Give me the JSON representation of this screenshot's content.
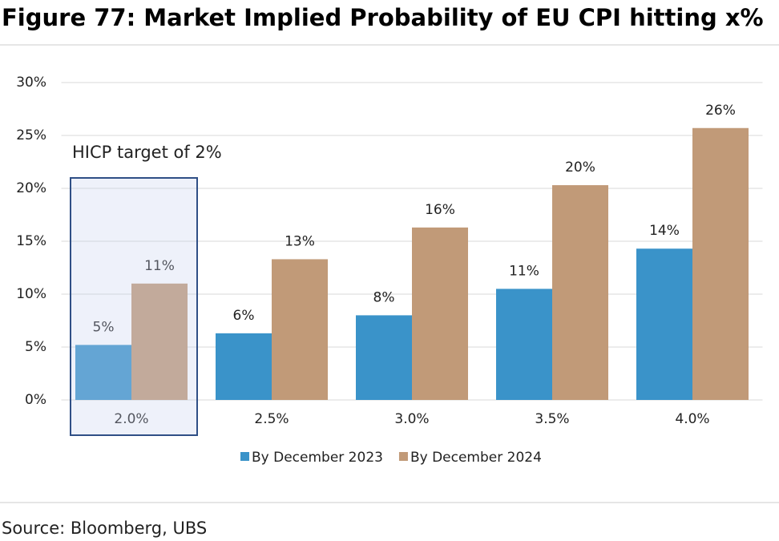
{
  "chart_data": {
    "type": "bar",
    "title": "Figure 77: Market Implied Probability of EU CPI hitting x%",
    "categories": [
      "2.0%",
      "2.5%",
      "3.0%",
      "3.5%",
      "4.0%"
    ],
    "series": [
      {
        "name": "By December 2023",
        "color": "#3a93c9",
        "values": [
          5.2,
          6.3,
          8.0,
          10.5,
          14.3
        ],
        "value_labels": [
          "5%",
          "6%",
          "8%",
          "11%",
          "14%"
        ]
      },
      {
        "name": "By December 2024",
        "color": "#c19a78",
        "values": [
          11.0,
          13.3,
          16.3,
          20.3,
          25.7
        ],
        "value_labels": [
          "11%",
          "13%",
          "16%",
          "20%",
          "26%"
        ]
      }
    ],
    "ylim": [
      0,
      30
    ],
    "yticks": [
      {
        "value": 0,
        "label": "0%"
      },
      {
        "value": 5,
        "label": "5%"
      },
      {
        "value": 10,
        "label": "10%"
      },
      {
        "value": 15,
        "label": "15%"
      },
      {
        "value": 20,
        "label": "20%"
      },
      {
        "value": 25,
        "label": "25%"
      },
      {
        "value": 30,
        "label": "30%"
      }
    ],
    "grid": true,
    "annotation": "HICP target of 2%",
    "source": "Source: Bloomberg, UBS"
  }
}
